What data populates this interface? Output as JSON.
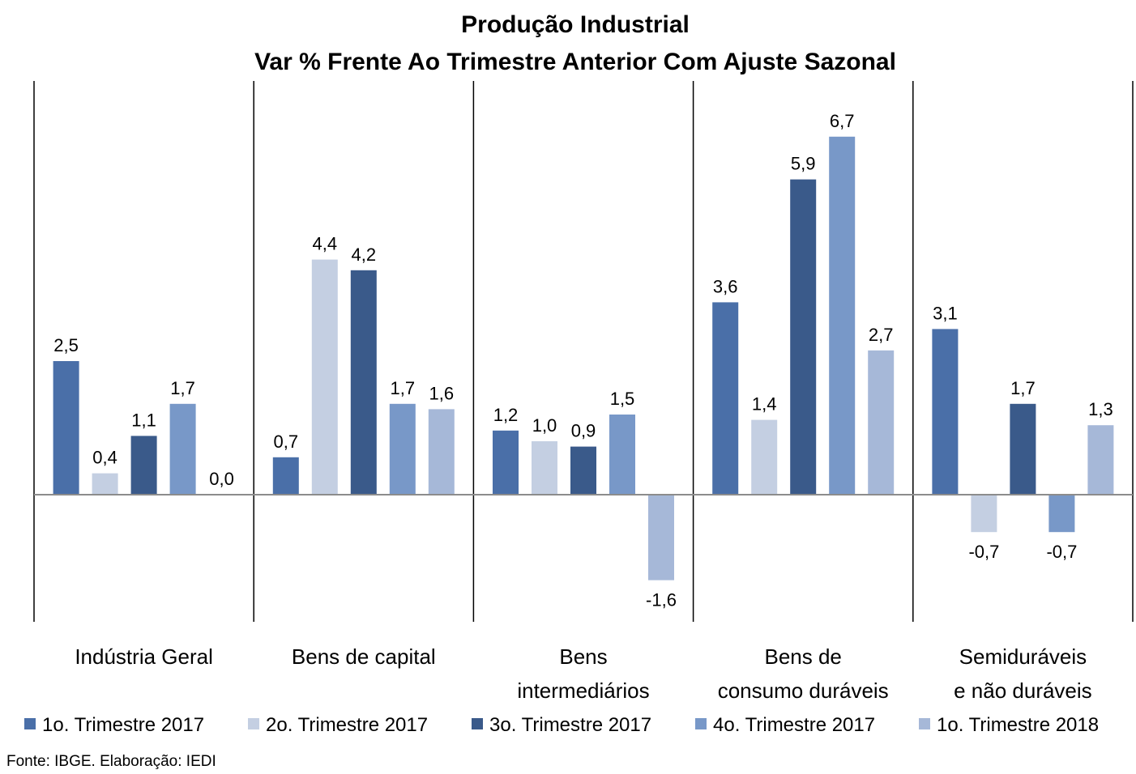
{
  "chart_data": {
    "type": "bar",
    "title": "Produção Industrial",
    "subtitle": "Var % Frente Ao Trimestre Anterior Com Ajuste Sazonal",
    "categories": [
      [
        "Indústria Geral"
      ],
      [
        "Bens de capital"
      ],
      [
        "Bens",
        "intermediários"
      ],
      [
        "Bens de",
        "consumo duráveis"
      ],
      [
        "Semiduráveis",
        "e não duráveis"
      ]
    ],
    "series": [
      {
        "name": "1o. Trimestre 2017",
        "color": "#4a6fa8",
        "values": [
          2.5,
          0.7,
          1.2,
          3.6,
          3.1
        ],
        "labels": [
          "2,5",
          "0,7",
          "1,2",
          "3,6",
          "3,1"
        ]
      },
      {
        "name": "2o. Trimestre 2017",
        "color": "#c4cfe2",
        "values": [
          0.4,
          4.4,
          1.0,
          1.4,
          -0.7
        ],
        "labels": [
          "0,4",
          "4,4",
          "1,0",
          "1,4",
          "-0,7"
        ]
      },
      {
        "name": "3o. Trimestre 2017",
        "color": "#3a5a8a",
        "values": [
          1.1,
          4.2,
          0.9,
          5.9,
          1.7
        ],
        "labels": [
          "1,1",
          "4,2",
          "0,9",
          "5,9",
          "1,7"
        ]
      },
      {
        "name": "4o. Trimestre 2017",
        "color": "#7898c8",
        "values": [
          1.7,
          1.7,
          1.5,
          6.7,
          -0.7
        ],
        "labels": [
          "1,7",
          "1,7",
          "1,5",
          "6,7",
          "-0,7"
        ]
      },
      {
        "name": "1o. Trimestre 2018",
        "color": "#a6b8d8",
        "values": [
          0.0,
          1.6,
          -1.6,
          2.7,
          1.3
        ],
        "labels": [
          "0,0",
          "1,6",
          "-1,6",
          "2,7",
          "1,3"
        ]
      }
    ],
    "ylim": [
      -2.3,
      7.6
    ],
    "legend": "bottom",
    "grid": false
  },
  "source": "Fonte: IBGE. Elaboração: IEDI"
}
